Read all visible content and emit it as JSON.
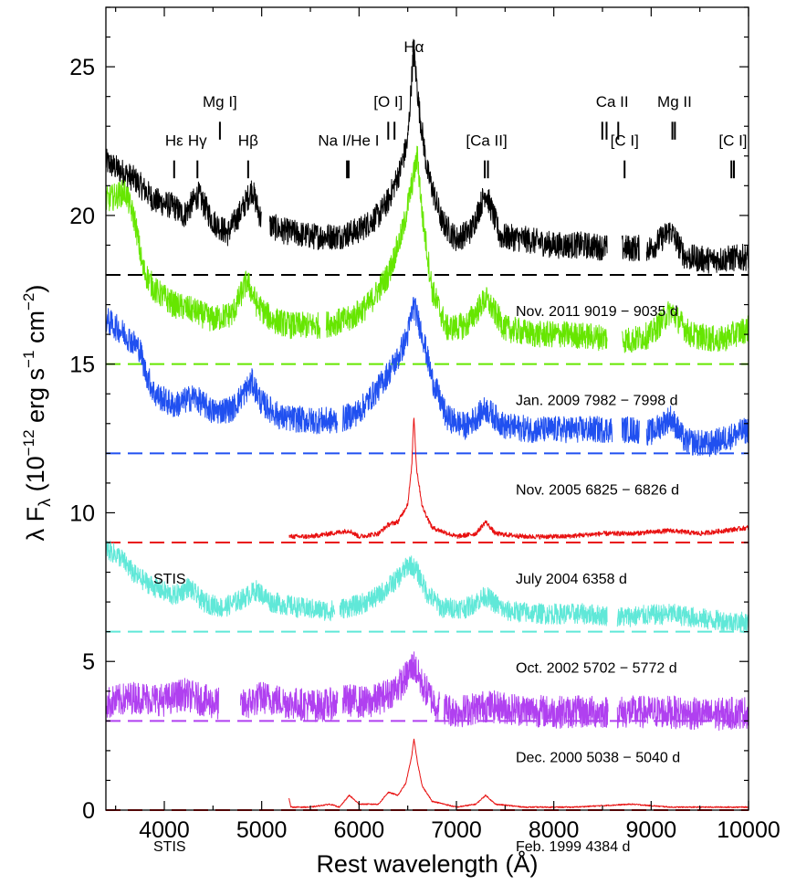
{
  "chart_data": {
    "type": "line",
    "title": "",
    "xlabel": "Rest wavelength (Å)",
    "ylabel_parts": {
      "prefix": "λ F",
      "sub": "λ",
      "paren_open": " (10",
      "exp1": "−12",
      "erg": " erg s",
      "exp2": "−1",
      "cm": " cm",
      "exp3": "−2",
      "close": ")"
    },
    "xlim": [
      3400,
      10000
    ],
    "ylim": [
      0,
      27
    ],
    "xticks": [
      4000,
      5000,
      6000,
      7000,
      8000,
      9000,
      10000
    ],
    "yticks": [
      0,
      5,
      10,
      15,
      20,
      25
    ],
    "series": [
      {
        "name": "Nov. 2011",
        "epoch_label": "Nov. 2011 9019 − 9035 d",
        "color": "#000000",
        "baseline": 18,
        "instrument": "",
        "noise": 0.45,
        "points": [
          [
            3400,
            21.8
          ],
          [
            3700,
            21.2
          ],
          [
            3900,
            20.5
          ],
          [
            4100,
            20.3
          ],
          [
            4200,
            20.0
          ],
          [
            4350,
            20.7
          ],
          [
            4500,
            19.8
          ],
          [
            4650,
            19.4
          ],
          [
            4800,
            20.2
          ],
          [
            4900,
            20.9
          ],
          [
            5000,
            19.8
          ],
          [
            5200,
            19.5
          ],
          [
            5500,
            19.3
          ],
          [
            5800,
            19.3
          ],
          [
            6000,
            19.5
          ],
          [
            6200,
            20.0
          ],
          [
            6300,
            20.5
          ],
          [
            6420,
            21.5
          ],
          [
            6500,
            22.5
          ],
          [
            6560,
            25.6
          ],
          [
            6620,
            23.5
          ],
          [
            6700,
            21.5
          ],
          [
            6850,
            19.8
          ],
          [
            7000,
            19.2
          ],
          [
            7150,
            19.5
          ],
          [
            7300,
            20.8
          ],
          [
            7450,
            19.3
          ],
          [
            7700,
            19.2
          ],
          [
            8000,
            19.0
          ],
          [
            8300,
            19.0
          ],
          [
            8600,
            18.9
          ],
          [
            9000,
            18.9
          ],
          [
            9200,
            19.5
          ],
          [
            9350,
            18.6
          ],
          [
            9600,
            18.5
          ],
          [
            10000,
            18.6
          ]
        ],
        "gaps": [
          [
            5000,
            5080
          ],
          [
            8550,
            8700
          ],
          [
            8880,
            8950
          ]
        ]
      },
      {
        "name": "Jan. 2009",
        "epoch_label": "Jan. 2009 7982 − 7998 d",
        "color": "#66e600",
        "baseline": 15,
        "instrument": "",
        "noise": 0.45,
        "points": [
          [
            3400,
            20.5
          ],
          [
            3600,
            20.8
          ],
          [
            3700,
            19.8
          ],
          [
            3780,
            18.2
          ],
          [
            3900,
            17.5
          ],
          [
            4100,
            17.0
          ],
          [
            4300,
            16.8
          ],
          [
            4500,
            16.5
          ],
          [
            4700,
            16.7
          ],
          [
            4850,
            17.8
          ],
          [
            4950,
            17.0
          ],
          [
            5100,
            16.5
          ],
          [
            5300,
            16.3
          ],
          [
            5600,
            16.3
          ],
          [
            5900,
            16.5
          ],
          [
            6100,
            17.0
          ],
          [
            6300,
            18.0
          ],
          [
            6450,
            19.5
          ],
          [
            6540,
            21.0
          ],
          [
            6600,
            22.0
          ],
          [
            6650,
            20.0
          ],
          [
            6750,
            17.5
          ],
          [
            6900,
            16.2
          ],
          [
            7100,
            16.3
          ],
          [
            7300,
            17.2
          ],
          [
            7500,
            16.2
          ],
          [
            7800,
            16.0
          ],
          [
            8100,
            16.0
          ],
          [
            8500,
            15.9
          ],
          [
            8800,
            15.8
          ],
          [
            9000,
            16.0
          ],
          [
            9200,
            16.8
          ],
          [
            9400,
            16.0
          ],
          [
            9700,
            15.8
          ],
          [
            10000,
            16.2
          ]
        ],
        "gaps": [
          [
            5600,
            5660
          ],
          [
            8550,
            8700
          ]
        ]
      },
      {
        "name": "Nov. 2005",
        "epoch_label": "Nov. 2005 6825 − 6826 d",
        "color": "#2050f0",
        "baseline": 12,
        "instrument": "",
        "noise": 0.45,
        "points": [
          [
            3400,
            16.5
          ],
          [
            3600,
            16.0
          ],
          [
            3750,
            15.5
          ],
          [
            3800,
            14.8
          ],
          [
            3900,
            14.0
          ],
          [
            4100,
            13.6
          ],
          [
            4300,
            13.9
          ],
          [
            4500,
            13.4
          ],
          [
            4700,
            13.5
          ],
          [
            4900,
            14.4
          ],
          [
            5000,
            13.7
          ],
          [
            5200,
            13.2
          ],
          [
            5500,
            13.1
          ],
          [
            5800,
            13.1
          ],
          [
            6000,
            13.4
          ],
          [
            6200,
            14.2
          ],
          [
            6400,
            15.2
          ],
          [
            6500,
            16.0
          ],
          [
            6560,
            17.0
          ],
          [
            6650,
            16.0
          ],
          [
            6750,
            14.5
          ],
          [
            6900,
            13.2
          ],
          [
            7100,
            12.9
          ],
          [
            7300,
            13.5
          ],
          [
            7500,
            12.9
          ],
          [
            7800,
            12.8
          ],
          [
            8100,
            12.8
          ],
          [
            8500,
            12.8
          ],
          [
            8800,
            12.8
          ],
          [
            9000,
            12.7
          ],
          [
            9200,
            13.2
          ],
          [
            9350,
            12.4
          ],
          [
            9600,
            12.3
          ],
          [
            10000,
            12.8
          ]
        ],
        "gaps": [
          [
            5780,
            5830
          ],
          [
            8600,
            8700
          ],
          [
            8880,
            8950
          ]
        ]
      },
      {
        "name": "July 2004",
        "epoch_label": "July 2004 6358 d",
        "color": "#e81010",
        "baseline": 9,
        "instrument": "STIS",
        "noise": 0.08,
        "points": [
          [
            5280,
            9.2
          ],
          [
            5500,
            9.2
          ],
          [
            5700,
            9.3
          ],
          [
            5900,
            9.4
          ],
          [
            6000,
            9.2
          ],
          [
            6200,
            9.3
          ],
          [
            6300,
            9.6
          ],
          [
            6400,
            9.7
          ],
          [
            6500,
            10.3
          ],
          [
            6540,
            11.5
          ],
          [
            6563,
            13.3
          ],
          [
            6590,
            11.5
          ],
          [
            6650,
            10.2
          ],
          [
            6750,
            9.5
          ],
          [
            7000,
            9.2
          ],
          [
            7200,
            9.3
          ],
          [
            7300,
            9.7
          ],
          [
            7400,
            9.3
          ],
          [
            7700,
            9.2
          ],
          [
            8100,
            9.2
          ],
          [
            8500,
            9.3
          ],
          [
            8800,
            9.3
          ],
          [
            9200,
            9.4
          ],
          [
            9500,
            9.3
          ],
          [
            10000,
            9.5
          ]
        ],
        "gaps": []
      },
      {
        "name": "Oct. 2002",
        "epoch_label": "Oct. 2002 5702 − 5772 d",
        "color": "#60e8d8",
        "baseline": 6,
        "instrument": "",
        "noise": 0.35,
        "points": [
          [
            3400,
            8.8
          ],
          [
            3550,
            8.5
          ],
          [
            3700,
            7.9
          ],
          [
            3900,
            7.5
          ],
          [
            4100,
            7.2
          ],
          [
            4250,
            7.5
          ],
          [
            4400,
            7.0
          ],
          [
            4600,
            6.8
          ],
          [
            4800,
            7.1
          ],
          [
            4950,
            7.4
          ],
          [
            5100,
            7.0
          ],
          [
            5400,
            6.8
          ],
          [
            5700,
            6.7
          ],
          [
            6000,
            6.9
          ],
          [
            6200,
            7.2
          ],
          [
            6400,
            7.8
          ],
          [
            6520,
            8.3
          ],
          [
            6600,
            8.0
          ],
          [
            6700,
            7.3
          ],
          [
            6850,
            6.8
          ],
          [
            7100,
            6.8
          ],
          [
            7300,
            7.2
          ],
          [
            7500,
            6.7
          ],
          [
            7900,
            6.6
          ],
          [
            8300,
            6.6
          ],
          [
            8700,
            6.5
          ],
          [
            9200,
            6.6
          ],
          [
            9600,
            6.4
          ],
          [
            10000,
            6.3
          ]
        ],
        "gaps": [
          [
            5750,
            5800
          ],
          [
            8550,
            8650
          ]
        ]
      },
      {
        "name": "Dec. 2000",
        "epoch_label": "Dec. 2000 5038 − 5040 d",
        "color": "#b040f0",
        "baseline": 3,
        "instrument": "",
        "noise": 0.55,
        "points": [
          [
            3400,
            3.6
          ],
          [
            3700,
            3.8
          ],
          [
            4000,
            3.7
          ],
          [
            4200,
            3.9
          ],
          [
            4500,
            3.6
          ],
          [
            4800,
            3.5
          ],
          [
            5000,
            3.8
          ],
          [
            5300,
            3.6
          ],
          [
            5600,
            3.5
          ],
          [
            5900,
            3.7
          ],
          [
            6100,
            3.6
          ],
          [
            6300,
            3.9
          ],
          [
            6450,
            4.3
          ],
          [
            6560,
            4.9
          ],
          [
            6650,
            4.2
          ],
          [
            6800,
            3.5
          ],
          [
            7000,
            3.3
          ],
          [
            7300,
            3.5
          ],
          [
            7600,
            3.4
          ],
          [
            8000,
            3.3
          ],
          [
            8500,
            3.3
          ],
          [
            8800,
            3.3
          ],
          [
            9200,
            3.3
          ],
          [
            9600,
            3.2
          ],
          [
            10000,
            3.3
          ]
        ],
        "gaps": [
          [
            4560,
            4780
          ],
          [
            5780,
            5830
          ],
          [
            6830,
            6870
          ],
          [
            8560,
            8650
          ]
        ]
      },
      {
        "name": "Feb. 1999",
        "epoch_label": "Feb. 1999 4384 d",
        "color": "#e81010",
        "baseline": 0,
        "instrument": "STIS",
        "noise": 0.02,
        "points": [
          [
            5280,
            0.4
          ],
          [
            5300,
            0.1
          ],
          [
            5500,
            0.1
          ],
          [
            5700,
            0.2
          ],
          [
            5800,
            0.1
          ],
          [
            5900,
            0.5
          ],
          [
            6000,
            0.2
          ],
          [
            6200,
            0.2
          ],
          [
            6300,
            0.6
          ],
          [
            6400,
            0.5
          ],
          [
            6480,
            0.9
          ],
          [
            6540,
            1.8
          ],
          [
            6563,
            2.4
          ],
          [
            6600,
            1.6
          ],
          [
            6650,
            0.8
          ],
          [
            6750,
            0.3
          ],
          [
            7000,
            0.1
          ],
          [
            7200,
            0.2
          ],
          [
            7300,
            0.5
          ],
          [
            7400,
            0.2
          ],
          [
            7700,
            0.1
          ],
          [
            8200,
            0.1
          ],
          [
            8800,
            0.2
          ],
          [
            9200,
            0.1
          ],
          [
            10000,
            0.1
          ]
        ],
        "gaps": []
      }
    ],
    "line_ids": [
      {
        "label": "Hα",
        "x": 6563,
        "label_y": 25.5,
        "ticks": [
          6563
        ],
        "tick_y": [
          25.0,
          25.9
        ]
      },
      {
        "label": "Mg I]",
        "x": 4571,
        "label_y": 23.65,
        "ticks": [
          4571
        ],
        "tick_y": [
          22.55,
          23.15
        ]
      },
      {
        "label": "[O I]",
        "x": 6300,
        "label_y": 23.65,
        "ticks": [
          6300,
          6364
        ],
        "tick_y": [
          22.55,
          23.15
        ]
      },
      {
        "label": "Ca II",
        "x": 8600,
        "label_y": 23.65,
        "ticks": [
          8498,
          8542,
          8662
        ],
        "tick_y": [
          22.55,
          23.15
        ]
      },
      {
        "label": "Mg II",
        "x": 9240,
        "label_y": 23.65,
        "ticks": [
          9218,
          9244
        ],
        "tick_y": [
          22.55,
          23.15
        ]
      },
      {
        "label": "Hε",
        "x": 4101,
        "label_y": 22.35,
        "ticks": [
          4101
        ],
        "tick_y": [
          21.25,
          21.85
        ]
      },
      {
        "label": "Hγ",
        "x": 4340,
        "label_y": 22.35,
        "ticks": [
          4340
        ],
        "tick_y": [
          21.25,
          21.85
        ]
      },
      {
        "label": "Hβ",
        "x": 4861,
        "label_y": 22.35,
        "ticks": [
          4861
        ],
        "tick_y": [
          21.25,
          21.85
        ]
      },
      {
        "label": "Na I/He I",
        "x": 5893,
        "label_y": 22.35,
        "ticks": [
          5876,
          5893
        ],
        "tick_y": [
          21.25,
          21.85
        ]
      },
      {
        "label": "[Ca II]",
        "x": 7310,
        "label_y": 22.35,
        "ticks": [
          7291,
          7324
        ],
        "tick_y": [
          21.25,
          21.85
        ]
      },
      {
        "label": "[C I]",
        "x": 8727,
        "label_y": 22.35,
        "ticks": [
          8727
        ],
        "tick_y": [
          21.25,
          21.85
        ]
      },
      {
        "label": "[C I]",
        "x": 9840,
        "label_y": 22.35,
        "ticks": [
          9824,
          9850
        ],
        "tick_y": [
          21.25,
          21.85
        ]
      }
    ],
    "grid": false,
    "legend": "none"
  }
}
